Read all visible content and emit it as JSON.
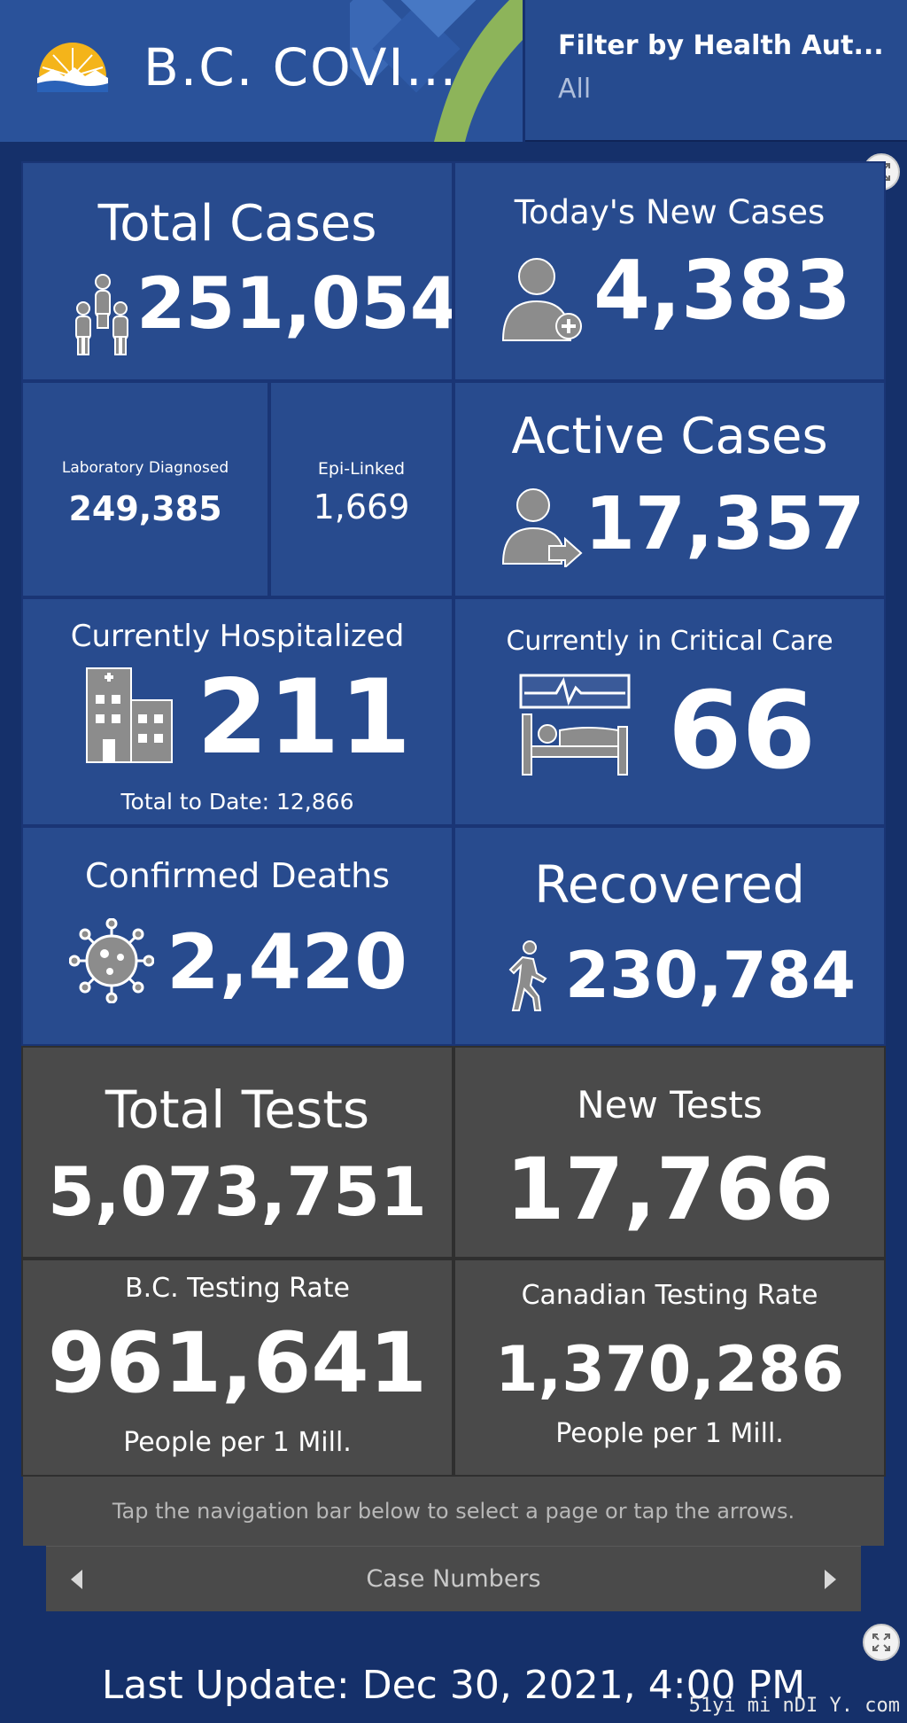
{
  "header": {
    "title": "B.C. COVI…",
    "filter_label": "Filter by Health Aut...",
    "filter_value": "All"
  },
  "colors": {
    "panel_blue": "#284b8e",
    "panel_gray": "#4a4a4a",
    "background": "#15306a",
    "icon_gray": "#8c8c8c"
  },
  "cards": {
    "total_cases": {
      "title": "Total Cases",
      "value": "251,054",
      "icon": "people-group-icon"
    },
    "new_cases": {
      "title": "Today's New Cases",
      "value": "4,383",
      "icon": "person-add-icon"
    },
    "lab_diagnosed": {
      "title": "Laboratory Diagnosed",
      "value": "249,385"
    },
    "epi_linked": {
      "title": "Epi-Linked",
      "value": "1,669"
    },
    "active_cases": {
      "title": "Active Cases",
      "value": "17,357",
      "icon": "person-arrow-icon"
    },
    "hospitalized": {
      "title": "Currently Hospitalized",
      "value": "211",
      "sub": "Total to Date: 12,866",
      "icon": "hospital-icon"
    },
    "critical_care": {
      "title": "Currently in Critical Care",
      "value": "66",
      "icon": "hospital-bed-icon"
    },
    "deaths": {
      "title": "Confirmed Deaths",
      "value": "2,420",
      "icon": "virus-icon"
    },
    "recovered": {
      "title": "Recovered",
      "value": "230,784",
      "icon": "walking-person-icon"
    },
    "total_tests": {
      "title": "Total Tests",
      "value": "5,073,751"
    },
    "new_tests": {
      "title": "New Tests",
      "value": "17,766"
    },
    "bc_rate": {
      "title": "B.C. Testing Rate",
      "value": "961,641",
      "sub": "People per 1 Mill."
    },
    "canada_rate": {
      "title": "Canadian Testing Rate",
      "value": "1,370,286",
      "sub": "People per 1 Mill."
    }
  },
  "info_text": "Tap the navigation bar below to select a page or tap the arrows.",
  "nav": {
    "label": "Case Numbers"
  },
  "last_update": "Last Update: Dec 30, 2021, 4:00 PM",
  "watermark": "51yi mi nDI Y. com"
}
